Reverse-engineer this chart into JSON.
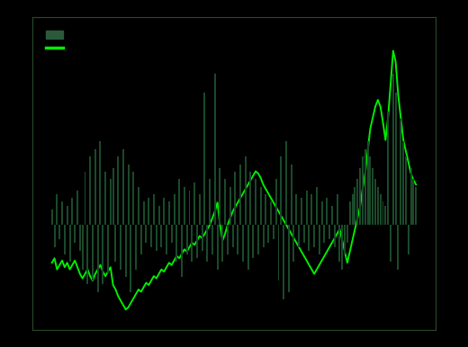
{
  "background_color": "#000000",
  "plot_bg_color": "#000000",
  "bar_color": "#1a4a2a",
  "line_color": "#00ee00",
  "legend_bar_color": "#2a5a3a",
  "legend_line_color": "#00ee00",
  "spine_color": "#2a4a2a",
  "bar_values": [
    0.04,
    -0.06,
    0.08,
    -0.04,
    0.06,
    -0.08,
    0.05,
    -0.1,
    0.07,
    -0.05,
    0.09,
    -0.07,
    -0.12,
    0.14,
    -0.16,
    0.18,
    -0.15,
    0.2,
    -0.18,
    0.22,
    -0.16,
    0.14,
    -0.13,
    0.12,
    0.15,
    -0.1,
    0.18,
    -0.12,
    0.2,
    -0.14,
    0.16,
    -0.18,
    0.14,
    -0.12,
    0.1,
    -0.08,
    0.06,
    -0.05,
    0.07,
    -0.06,
    0.08,
    -0.07,
    0.05,
    -0.06,
    0.07,
    -0.08,
    0.06,
    -0.05,
    0.08,
    -0.1,
    0.12,
    -0.14,
    0.1,
    -0.08,
    0.09,
    -0.1,
    0.11,
    -0.09,
    0.08,
    -0.07,
    0.35,
    -0.1,
    0.12,
    -0.08,
    0.4,
    -0.12,
    0.15,
    -0.1,
    0.12,
    -0.08,
    0.1,
    -0.06,
    0.14,
    -0.08,
    0.16,
    -0.1,
    0.18,
    -0.12,
    0.14,
    -0.09,
    0.12,
    -0.08,
    0.1,
    -0.06,
    0.08,
    -0.05,
    0.06,
    -0.04,
    0.12,
    -0.15,
    0.18,
    -0.2,
    0.22,
    -0.18,
    0.16,
    -0.1,
    0.08,
    -0.06,
    0.07,
    -0.05,
    0.09,
    -0.07,
    0.08,
    -0.06,
    0.1,
    -0.08,
    0.06,
    -0.05,
    0.07,
    -0.04,
    0.05,
    -0.06,
    0.08,
    -0.1,
    -0.12,
    -0.08,
    -0.05,
    0.06,
    0.08,
    0.1,
    0.12,
    0.15,
    0.18,
    0.2,
    0.22,
    0.18,
    0.15,
    0.12,
    0.1,
    0.08,
    0.06,
    0.05,
    0.3,
    -0.1,
    0.4,
    0.35,
    -0.12,
    0.28,
    0.22,
    0.18,
    -0.08,
    0.15,
    0.12,
    0.1
  ],
  "line_values": [
    1.55,
    1.57,
    1.52,
    1.54,
    1.56,
    1.53,
    1.55,
    1.52,
    1.54,
    1.56,
    1.53,
    1.5,
    1.48,
    1.5,
    1.52,
    1.49,
    1.47,
    1.5,
    1.52,
    1.54,
    1.51,
    1.49,
    1.51,
    1.53,
    1.45,
    1.43,
    1.4,
    1.38,
    1.36,
    1.34,
    1.35,
    1.37,
    1.39,
    1.41,
    1.43,
    1.42,
    1.44,
    1.46,
    1.45,
    1.47,
    1.49,
    1.48,
    1.5,
    1.52,
    1.51,
    1.53,
    1.55,
    1.54,
    1.56,
    1.58,
    1.57,
    1.59,
    1.61,
    1.6,
    1.62,
    1.64,
    1.63,
    1.65,
    1.67,
    1.66,
    1.68,
    1.7,
    1.72,
    1.75,
    1.78,
    1.82,
    1.72,
    1.65,
    1.68,
    1.72,
    1.75,
    1.78,
    1.8,
    1.82,
    1.84,
    1.86,
    1.88,
    1.9,
    1.92,
    1.94,
    1.96,
    1.95,
    1.93,
    1.9,
    1.88,
    1.86,
    1.84,
    1.82,
    1.8,
    1.78,
    1.76,
    1.74,
    1.72,
    1.7,
    1.68,
    1.66,
    1.64,
    1.62,
    1.6,
    1.58,
    1.56,
    1.54,
    1.52,
    1.5,
    1.52,
    1.54,
    1.56,
    1.58,
    1.6,
    1.62,
    1.64,
    1.66,
    1.68,
    1.7,
    1.65,
    1.6,
    1.55,
    1.6,
    1.65,
    1.7,
    1.75,
    1.8,
    1.88,
    1.95,
    2.05,
    2.15,
    2.2,
    2.25,
    2.28,
    2.25,
    2.18,
    2.1,
    2.2,
    2.35,
    2.5,
    2.45,
    2.3,
    2.2,
    2.1,
    2.05,
    2.0,
    1.95,
    1.92,
    1.9
  ],
  "ylim_left": [
    1.25,
    2.65
  ],
  "ylim_right": [
    -0.28,
    0.55
  ],
  "figsize": [
    5.2,
    3.86
  ],
  "dpi": 100
}
